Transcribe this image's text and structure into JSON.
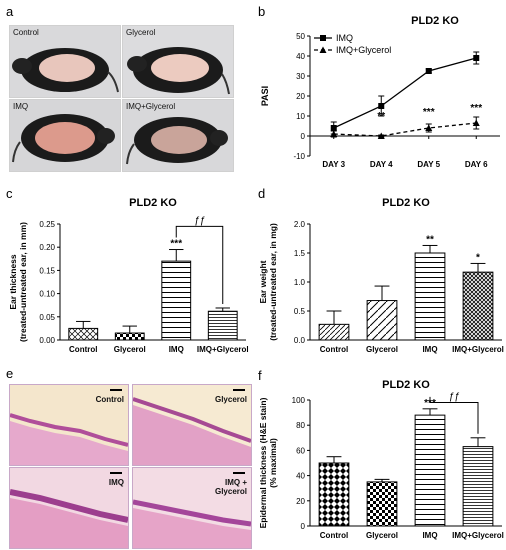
{
  "panels": {
    "a": {
      "letter": "a",
      "photos": [
        {
          "label": "Control"
        },
        {
          "label": "Glycerol"
        },
        {
          "label": "IMQ"
        },
        {
          "label": "IMQ+Glycerol"
        }
      ]
    },
    "e": {
      "letter": "e",
      "images": [
        {
          "label": "Control"
        },
        {
          "label": "Glycerol"
        },
        {
          "label": "IMQ"
        },
        {
          "label": "IMQ +\nGlycerol"
        }
      ]
    }
  },
  "chart_data": [
    {
      "id": "b",
      "letter": "b",
      "type": "line",
      "title": "PLD2 KO",
      "xlabel": "",
      "ylabel": "PASI",
      "categories": [
        "DAY 3",
        "DAY 4",
        "DAY 5",
        "DAY 6"
      ],
      "ylim": [
        -10,
        50
      ],
      "yticks": [
        "-10",
        "0",
        "10",
        "20",
        "30",
        "40",
        "50"
      ],
      "series": [
        {
          "name": "IMQ",
          "values": [
            4,
            15,
            32.5,
            39
          ],
          "errors": [
            3,
            5,
            1,
            3
          ],
          "style": "solid",
          "marker": "square"
        },
        {
          "name": "IMQ+Glycerol",
          "values": [
            1,
            0,
            4,
            6.5
          ],
          "errors": [
            1.5,
            0.5,
            2,
            3
          ],
          "style": "dashed",
          "marker": "triangle"
        }
      ],
      "annotations": [
        {
          "x": "DAY 4",
          "y": 10,
          "text": "**"
        },
        {
          "x": "DAY 5",
          "y": 12,
          "text": "***"
        },
        {
          "x": "DAY 6",
          "y": 14,
          "text": "***"
        }
      ],
      "legend": "top-left"
    },
    {
      "id": "c",
      "letter": "c",
      "type": "bar",
      "title": "PLD2 KO",
      "ylabel": "Ear thickness\n(treated-untreated ear, in mm)",
      "categories": [
        "Control",
        "Glycerol",
        "IMQ",
        "IMQ+Glycerol"
      ],
      "values": [
        0.025,
        0.015,
        0.17,
        0.062
      ],
      "errors": [
        0.015,
        0.015,
        0.025,
        0.007
      ],
      "ylim": [
        0,
        0.25
      ],
      "yticks": [
        "0.00",
        "0.05",
        "0.10",
        "0.15",
        "0.20",
        "0.25"
      ],
      "patterns": [
        "cross",
        "check",
        "hlines",
        "hlines-dense"
      ],
      "annotations": [
        {
          "x": "IMQ",
          "text": "***"
        }
      ],
      "bracket": {
        "from": "IMQ",
        "to": "IMQ+Glycerol",
        "text": "ƒƒ",
        "y": 0.245
      }
    },
    {
      "id": "d",
      "letter": "d",
      "type": "bar",
      "title": "PLD2 KO",
      "ylabel": "Ear weight\n(treated-untreated ear, in mg)",
      "categories": [
        "Control",
        "Glycerol",
        "IMQ",
        "IMQ+Glycerol"
      ],
      "values": [
        0.27,
        0.68,
        1.5,
        1.17
      ],
      "errors": [
        0.23,
        0.25,
        0.13,
        0.15
      ],
      "ylim": [
        0,
        2.0
      ],
      "yticks": [
        "0.0",
        "0.5",
        "1.0",
        "1.5",
        "2.0"
      ],
      "patterns": [
        "diag",
        "diag-wide",
        "hlines",
        "crosshatch"
      ],
      "annotations": [
        {
          "x": "IMQ",
          "text": "**"
        },
        {
          "x": "IMQ+Glycerol",
          "text": "*"
        }
      ]
    },
    {
      "id": "f",
      "letter": "f",
      "type": "bar",
      "title": "PLD2 KO",
      "ylabel": "Epidermal thickness (H&E stain)\n(% maximal)",
      "categories": [
        "Control",
        "Glycerol",
        "IMQ",
        "IMQ+Glycerol"
      ],
      "values": [
        50,
        35,
        88,
        63
      ],
      "errors": [
        5,
        2,
        5,
        7
      ],
      "ylim": [
        0,
        100
      ],
      "yticks": [
        "0",
        "20",
        "40",
        "60",
        "80",
        "100"
      ],
      "patterns": [
        "diamond",
        "check",
        "hlines",
        "hlines-dense"
      ],
      "annotations": [
        {
          "x": "IMQ",
          "text": "***"
        }
      ],
      "bracket": {
        "from": "IMQ",
        "to": "IMQ+Glycerol",
        "text": "ƒƒ",
        "y": 98
      }
    }
  ]
}
